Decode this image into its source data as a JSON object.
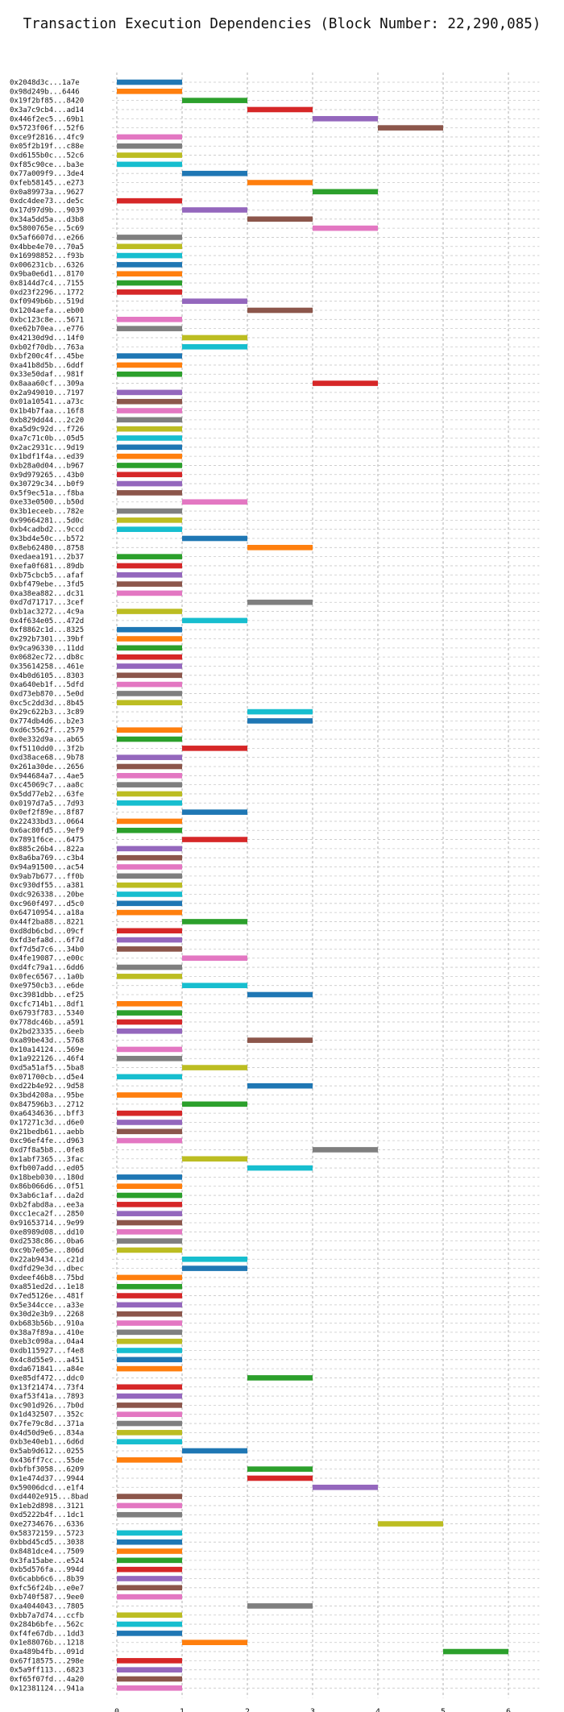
{
  "chart_data": {
    "type": "bar",
    "orientation": "horizontal-gantt",
    "title": "Transaction Execution Dependencies (Block Number: 22,290,085)",
    "xlabel": "",
    "ylabel": "",
    "xlim": [
      0,
      6.4
    ],
    "xticks": [
      0,
      1,
      2,
      3,
      4,
      5,
      6
    ],
    "grid": true,
    "color_cycle": [
      "#1f77b4",
      "#ff7f0e",
      "#2ca02c",
      "#d62728",
      "#9467bd",
      "#8c564b",
      "#e377c2",
      "#7f7f7f",
      "#bcbd22",
      "#17becf"
    ],
    "transactions": [
      {
        "hash": "0x2048d3c...1a7e",
        "start": 0,
        "end": 1
      },
      {
        "hash": "0x98d249b...6446",
        "start": 0,
        "end": 1
      },
      {
        "hash": "0x19f2bf85...8420",
        "start": 1,
        "end": 2
      },
      {
        "hash": "0x3a7c9cb4...ad14",
        "start": 2,
        "end": 3
      },
      {
        "hash": "0x446f2ec5...69b1",
        "start": 3,
        "end": 4
      },
      {
        "hash": "0x5723f06f...52f6",
        "start": 4,
        "end": 5
      },
      {
        "hash": "0xce9f2816...4fc9",
        "start": 0,
        "end": 1
      },
      {
        "hash": "0x05f2b19f...c88e",
        "start": 0,
        "end": 1
      },
      {
        "hash": "0xd6155b0c...52c6",
        "start": 0,
        "end": 1
      },
      {
        "hash": "0xf85c90ce...ba3e",
        "start": 0,
        "end": 1
      },
      {
        "hash": "0x77a009f9...3de4",
        "start": 1,
        "end": 2
      },
      {
        "hash": "0xfeb58145...e273",
        "start": 2,
        "end": 3
      },
      {
        "hash": "0x0a89973a...9627",
        "start": 3,
        "end": 4
      },
      {
        "hash": "0xdc4dee73...de5c",
        "start": 0,
        "end": 1
      },
      {
        "hash": "0x17d97d9b...9039",
        "start": 1,
        "end": 2
      },
      {
        "hash": "0x34a5dd5a...d3b8",
        "start": 2,
        "end": 3
      },
      {
        "hash": "0x5800765e...5c69",
        "start": 3,
        "end": 4
      },
      {
        "hash": "0x5af6607d...e266",
        "start": 0,
        "end": 1
      },
      {
        "hash": "0x4bbe4e70...70a5",
        "start": 0,
        "end": 1
      },
      {
        "hash": "0x16998852...f93b",
        "start": 0,
        "end": 1
      },
      {
        "hash": "0x006231cb...6326",
        "start": 0,
        "end": 1
      },
      {
        "hash": "0x9ba0e6d1...8170",
        "start": 0,
        "end": 1
      },
      {
        "hash": "0x8144d7c4...7155",
        "start": 0,
        "end": 1
      },
      {
        "hash": "0xd23f2296...1772",
        "start": 0,
        "end": 1
      },
      {
        "hash": "0xf0949b6b...519d",
        "start": 1,
        "end": 2
      },
      {
        "hash": "0x1204aefa...eb00",
        "start": 2,
        "end": 3
      },
      {
        "hash": "0xbc123c8e...5671",
        "start": 0,
        "end": 1
      },
      {
        "hash": "0xe62b70ea...e776",
        "start": 0,
        "end": 1
      },
      {
        "hash": "0x42130d9d...14f0",
        "start": 1,
        "end": 2
      },
      {
        "hash": "0xb02f70db...763a",
        "start": 1,
        "end": 2
      },
      {
        "hash": "0xbf200c4f...45be",
        "start": 0,
        "end": 1
      },
      {
        "hash": "0xa41b8d5b...6ddf",
        "start": 0,
        "end": 1
      },
      {
        "hash": "0x33e50daf...981f",
        "start": 0,
        "end": 1
      },
      {
        "hash": "0x8aaa60cf...309a",
        "start": 3,
        "end": 4
      },
      {
        "hash": "0x2a949010...7197",
        "start": 0,
        "end": 1
      },
      {
        "hash": "0x01a10541...a73c",
        "start": 0,
        "end": 1
      },
      {
        "hash": "0x1b4b7faa...16f8",
        "start": 0,
        "end": 1
      },
      {
        "hash": "0xb829dd44...2c20",
        "start": 0,
        "end": 1
      },
      {
        "hash": "0xa5d9c92d...f726",
        "start": 0,
        "end": 1
      },
      {
        "hash": "0xa7c71c0b...05d5",
        "start": 0,
        "end": 1
      },
      {
        "hash": "0x2ac2931c...9d19",
        "start": 0,
        "end": 1
      },
      {
        "hash": "0x1bdf1f4a...ed39",
        "start": 0,
        "end": 1
      },
      {
        "hash": "0xb28a0d04...b967",
        "start": 0,
        "end": 1
      },
      {
        "hash": "0x9d979265...43b0",
        "start": 0,
        "end": 1
      },
      {
        "hash": "0x30729c34...b0f9",
        "start": 0,
        "end": 1
      },
      {
        "hash": "0x5f9ec51a...f8ba",
        "start": 0,
        "end": 1
      },
      {
        "hash": "0xe33e0500...b50d",
        "start": 1,
        "end": 2
      },
      {
        "hash": "0x3b1eceeb...782e",
        "start": 0,
        "end": 1
      },
      {
        "hash": "0x99664281...5d0c",
        "start": 0,
        "end": 1
      },
      {
        "hash": "0xb4cadbd2...9ccd",
        "start": 0,
        "end": 1
      },
      {
        "hash": "0x3bd4e50c...b572",
        "start": 1,
        "end": 2
      },
      {
        "hash": "0x8eb62480...8758",
        "start": 2,
        "end": 3
      },
      {
        "hash": "0xedaea191...2b37",
        "start": 0,
        "end": 1
      },
      {
        "hash": "0xefa0f681...89db",
        "start": 0,
        "end": 1
      },
      {
        "hash": "0xb75cbcb5...afaf",
        "start": 0,
        "end": 1
      },
      {
        "hash": "0xbf479ebe...3fd5",
        "start": 0,
        "end": 1
      },
      {
        "hash": "0xa38ea882...dc31",
        "start": 0,
        "end": 1
      },
      {
        "hash": "0xd7d71717...3cef",
        "start": 2,
        "end": 3
      },
      {
        "hash": "0xb1ac3272...4c9a",
        "start": 0,
        "end": 1
      },
      {
        "hash": "0x4f634e05...472d",
        "start": 1,
        "end": 2
      },
      {
        "hash": "0xf8862c1d...8325",
        "start": 0,
        "end": 1
      },
      {
        "hash": "0x292b7301...39bf",
        "start": 0,
        "end": 1
      },
      {
        "hash": "0x9ca96330...11dd",
        "start": 0,
        "end": 1
      },
      {
        "hash": "0x0682ec72...db8c",
        "start": 0,
        "end": 1
      },
      {
        "hash": "0x35614258...461e",
        "start": 0,
        "end": 1
      },
      {
        "hash": "0x4b0d6105...8303",
        "start": 0,
        "end": 1
      },
      {
        "hash": "0xa640eb1f...5dfd",
        "start": 0,
        "end": 1
      },
      {
        "hash": "0xd73eb870...5e0d",
        "start": 0,
        "end": 1
      },
      {
        "hash": "0xc5c2dd3d...8b45",
        "start": 0,
        "end": 1
      },
      {
        "hash": "0x29c622b3...3c89",
        "start": 2,
        "end": 3
      },
      {
        "hash": "0x774db4d6...b2e3",
        "start": 2,
        "end": 3
      },
      {
        "hash": "0xd6c5562f...2579",
        "start": 0,
        "end": 1
      },
      {
        "hash": "0x0e332d9a...ab65",
        "start": 0,
        "end": 1
      },
      {
        "hash": "0xf5110dd0...3f2b",
        "start": 1,
        "end": 2
      },
      {
        "hash": "0xd38ace68...9b78",
        "start": 0,
        "end": 1
      },
      {
        "hash": "0x261a30de...2656",
        "start": 0,
        "end": 1
      },
      {
        "hash": "0x944684a7...4ae5",
        "start": 0,
        "end": 1
      },
      {
        "hash": "0xc45069c7...aa8c",
        "start": 0,
        "end": 1
      },
      {
        "hash": "0x5dd77eb2...63fe",
        "start": 0,
        "end": 1
      },
      {
        "hash": "0x0197d7a5...7d93",
        "start": 0,
        "end": 1
      },
      {
        "hash": "0x0ef2f89e...8f87",
        "start": 1,
        "end": 2
      },
      {
        "hash": "0x22433bd3...0664",
        "start": 0,
        "end": 1
      },
      {
        "hash": "0x6ac80fd5...9ef9",
        "start": 0,
        "end": 1
      },
      {
        "hash": "0x7891f6ce...6475",
        "start": 1,
        "end": 2
      },
      {
        "hash": "0x885c26b4...822a",
        "start": 0,
        "end": 1
      },
      {
        "hash": "0x8a6ba769...c3b4",
        "start": 0,
        "end": 1
      },
      {
        "hash": "0x94a91500...ac54",
        "start": 0,
        "end": 1
      },
      {
        "hash": "0x9ab7b677...ff0b",
        "start": 0,
        "end": 1
      },
      {
        "hash": "0xc930df55...a381",
        "start": 0,
        "end": 1
      },
      {
        "hash": "0xdc926338...20be",
        "start": 0,
        "end": 1
      },
      {
        "hash": "0xc960f497...d5c0",
        "start": 0,
        "end": 1
      },
      {
        "hash": "0x64710954...a18a",
        "start": 0,
        "end": 1
      },
      {
        "hash": "0x44f2ba88...8221",
        "start": 1,
        "end": 2
      },
      {
        "hash": "0xd8db6cbd...09cf",
        "start": 0,
        "end": 1
      },
      {
        "hash": "0xfd3efa8d...6f7d",
        "start": 0,
        "end": 1
      },
      {
        "hash": "0xf7d5d7c6...34b0",
        "start": 0,
        "end": 1
      },
      {
        "hash": "0x4fe19087...e00c",
        "start": 1,
        "end": 2
      },
      {
        "hash": "0xd4fc79a1...6dd6",
        "start": 0,
        "end": 1
      },
      {
        "hash": "0x0fec6567...1a0b",
        "start": 0,
        "end": 1
      },
      {
        "hash": "0xe9750cb3...e6de",
        "start": 1,
        "end": 2
      },
      {
        "hash": "0xc3981dbb...ef25",
        "start": 2,
        "end": 3
      },
      {
        "hash": "0xcfc714b1...8df1",
        "start": 0,
        "end": 1
      },
      {
        "hash": "0x6793f783...5340",
        "start": 0,
        "end": 1
      },
      {
        "hash": "0x778dc46b...a591",
        "start": 0,
        "end": 1
      },
      {
        "hash": "0x2bd23335...6eeb",
        "start": 0,
        "end": 1
      },
      {
        "hash": "0xa89be43d...5768",
        "start": 2,
        "end": 3
      },
      {
        "hash": "0x10a14124...569e",
        "start": 0,
        "end": 1
      },
      {
        "hash": "0x1a922126...46f4",
        "start": 0,
        "end": 1
      },
      {
        "hash": "0xd5a51af5...5ba8",
        "start": 1,
        "end": 2
      },
      {
        "hash": "0x071700cb...d5e4",
        "start": 0,
        "end": 1
      },
      {
        "hash": "0xd22b4e92...9d58",
        "start": 2,
        "end": 3
      },
      {
        "hash": "0x3bd4208a...95be",
        "start": 0,
        "end": 1
      },
      {
        "hash": "0x847596b3...2712",
        "start": 1,
        "end": 2
      },
      {
        "hash": "0xa6434636...bff3",
        "start": 0,
        "end": 1
      },
      {
        "hash": "0x17271c3d...d6e0",
        "start": 0,
        "end": 1
      },
      {
        "hash": "0x21bedb61...aebb",
        "start": 0,
        "end": 1
      },
      {
        "hash": "0xc96ef4fe...d963",
        "start": 0,
        "end": 1
      },
      {
        "hash": "0xd7f8a5b8...0fe8",
        "start": 3,
        "end": 4
      },
      {
        "hash": "0x1abf7365...3fac",
        "start": 1,
        "end": 2
      },
      {
        "hash": "0xfb007add...ed05",
        "start": 2,
        "end": 3
      },
      {
        "hash": "0x18beb030...180d",
        "start": 0,
        "end": 1
      },
      {
        "hash": "0x86b066d6...0f51",
        "start": 0,
        "end": 1
      },
      {
        "hash": "0x3ab6c1af...da2d",
        "start": 0,
        "end": 1
      },
      {
        "hash": "0xb2fabd8a...ee3a",
        "start": 0,
        "end": 1
      },
      {
        "hash": "0xcc1eca2f...2850",
        "start": 0,
        "end": 1
      },
      {
        "hash": "0x91653714...9e99",
        "start": 0,
        "end": 1
      },
      {
        "hash": "0xe8989d08...dd10",
        "start": 0,
        "end": 1
      },
      {
        "hash": "0xd2538c86...0ba6",
        "start": 0,
        "end": 1
      },
      {
        "hash": "0xc9b7e05e...806d",
        "start": 0,
        "end": 1
      },
      {
        "hash": "0x22ab9434...c21d",
        "start": 1,
        "end": 2
      },
      {
        "hash": "0xdfd29e3d...dbec",
        "start": 1,
        "end": 2
      },
      {
        "hash": "0xdeef46b8...75bd",
        "start": 0,
        "end": 1
      },
      {
        "hash": "0xa851ed2d...1e18",
        "start": 0,
        "end": 1
      },
      {
        "hash": "0x7ed5126e...481f",
        "start": 0,
        "end": 1
      },
      {
        "hash": "0x5e344cce...a33e",
        "start": 0,
        "end": 1
      },
      {
        "hash": "0x30d2e3b9...2268",
        "start": 0,
        "end": 1
      },
      {
        "hash": "0xb683b56b...910a",
        "start": 0,
        "end": 1
      },
      {
        "hash": "0x38a7f89a...410e",
        "start": 0,
        "end": 1
      },
      {
        "hash": "0xeb3c098a...04a4",
        "start": 0,
        "end": 1
      },
      {
        "hash": "0xdb115927...f4e8",
        "start": 0,
        "end": 1
      },
      {
        "hash": "0x4c8d55e9...a451",
        "start": 0,
        "end": 1
      },
      {
        "hash": "0xda671841...a84e",
        "start": 0,
        "end": 1
      },
      {
        "hash": "0xe85df472...ddc0",
        "start": 2,
        "end": 3
      },
      {
        "hash": "0x13f21474...73f4",
        "start": 0,
        "end": 1
      },
      {
        "hash": "0xaf53f41a...7893",
        "start": 0,
        "end": 1
      },
      {
        "hash": "0xc901d926...7b0d",
        "start": 0,
        "end": 1
      },
      {
        "hash": "0x1d432507...352c",
        "start": 0,
        "end": 1
      },
      {
        "hash": "0x7fe79c8d...371a",
        "start": 0,
        "end": 1
      },
      {
        "hash": "0x4d50d9e6...834a",
        "start": 0,
        "end": 1
      },
      {
        "hash": "0xb3e40eb1...6d6d",
        "start": 0,
        "end": 1
      },
      {
        "hash": "0x5ab9d612...0255",
        "start": 1,
        "end": 2
      },
      {
        "hash": "0x436ff7cc...55de",
        "start": 0,
        "end": 1
      },
      {
        "hash": "0xbfbf3058...6209",
        "start": 2,
        "end": 3
      },
      {
        "hash": "0x1e474d37...9944",
        "start": 2,
        "end": 3
      },
      {
        "hash": "0x59006dcd...e1f4",
        "start": 3,
        "end": 4
      },
      {
        "hash": "0xd4402e915...8bad",
        "start": 0,
        "end": 1
      },
      {
        "hash": "0x1eb2d898...3121",
        "start": 0,
        "end": 1
      },
      {
        "hash": "0xd5222b4f...1dc1",
        "start": 0,
        "end": 1
      },
      {
        "hash": "0xe2734676...6336",
        "start": 4,
        "end": 5
      },
      {
        "hash": "0x58372159...5723",
        "start": 0,
        "end": 1
      },
      {
        "hash": "0xbbd45cd5...3038",
        "start": 0,
        "end": 1
      },
      {
        "hash": "0x8481dce4...7509",
        "start": 0,
        "end": 1
      },
      {
        "hash": "0x3fa15abe...e524",
        "start": 0,
        "end": 1
      },
      {
        "hash": "0xb5d576fa...994d",
        "start": 0,
        "end": 1
      },
      {
        "hash": "0x6cabb6c6...8b39",
        "start": 0,
        "end": 1
      },
      {
        "hash": "0xfc56f24b...e0e7",
        "start": 0,
        "end": 1
      },
      {
        "hash": "0xb740f587...9ee0",
        "start": 0,
        "end": 1
      },
      {
        "hash": "0xa4044043...7805",
        "start": 2,
        "end": 3
      },
      {
        "hash": "0xbb7a7d74...ccfb",
        "start": 0,
        "end": 1
      },
      {
        "hash": "0x284b6bfe...562c",
        "start": 0,
        "end": 1
      },
      {
        "hash": "0xf4fe67db...1dd3",
        "start": 0,
        "end": 1
      },
      {
        "hash": "0x1e88076b...1218",
        "start": 1,
        "end": 2
      },
      {
        "hash": "0xa489b4fb...091d",
        "start": 5,
        "end": 6
      },
      {
        "hash": "0x67f18575...298e",
        "start": 0,
        "end": 1
      },
      {
        "hash": "0x5a9ff113...6823",
        "start": 0,
        "end": 1
      },
      {
        "hash": "0xf65f07fd...4a20",
        "start": 0,
        "end": 1
      },
      {
        "hash": "0x12381124...941a",
        "start": 0,
        "end": 1
      }
    ]
  }
}
